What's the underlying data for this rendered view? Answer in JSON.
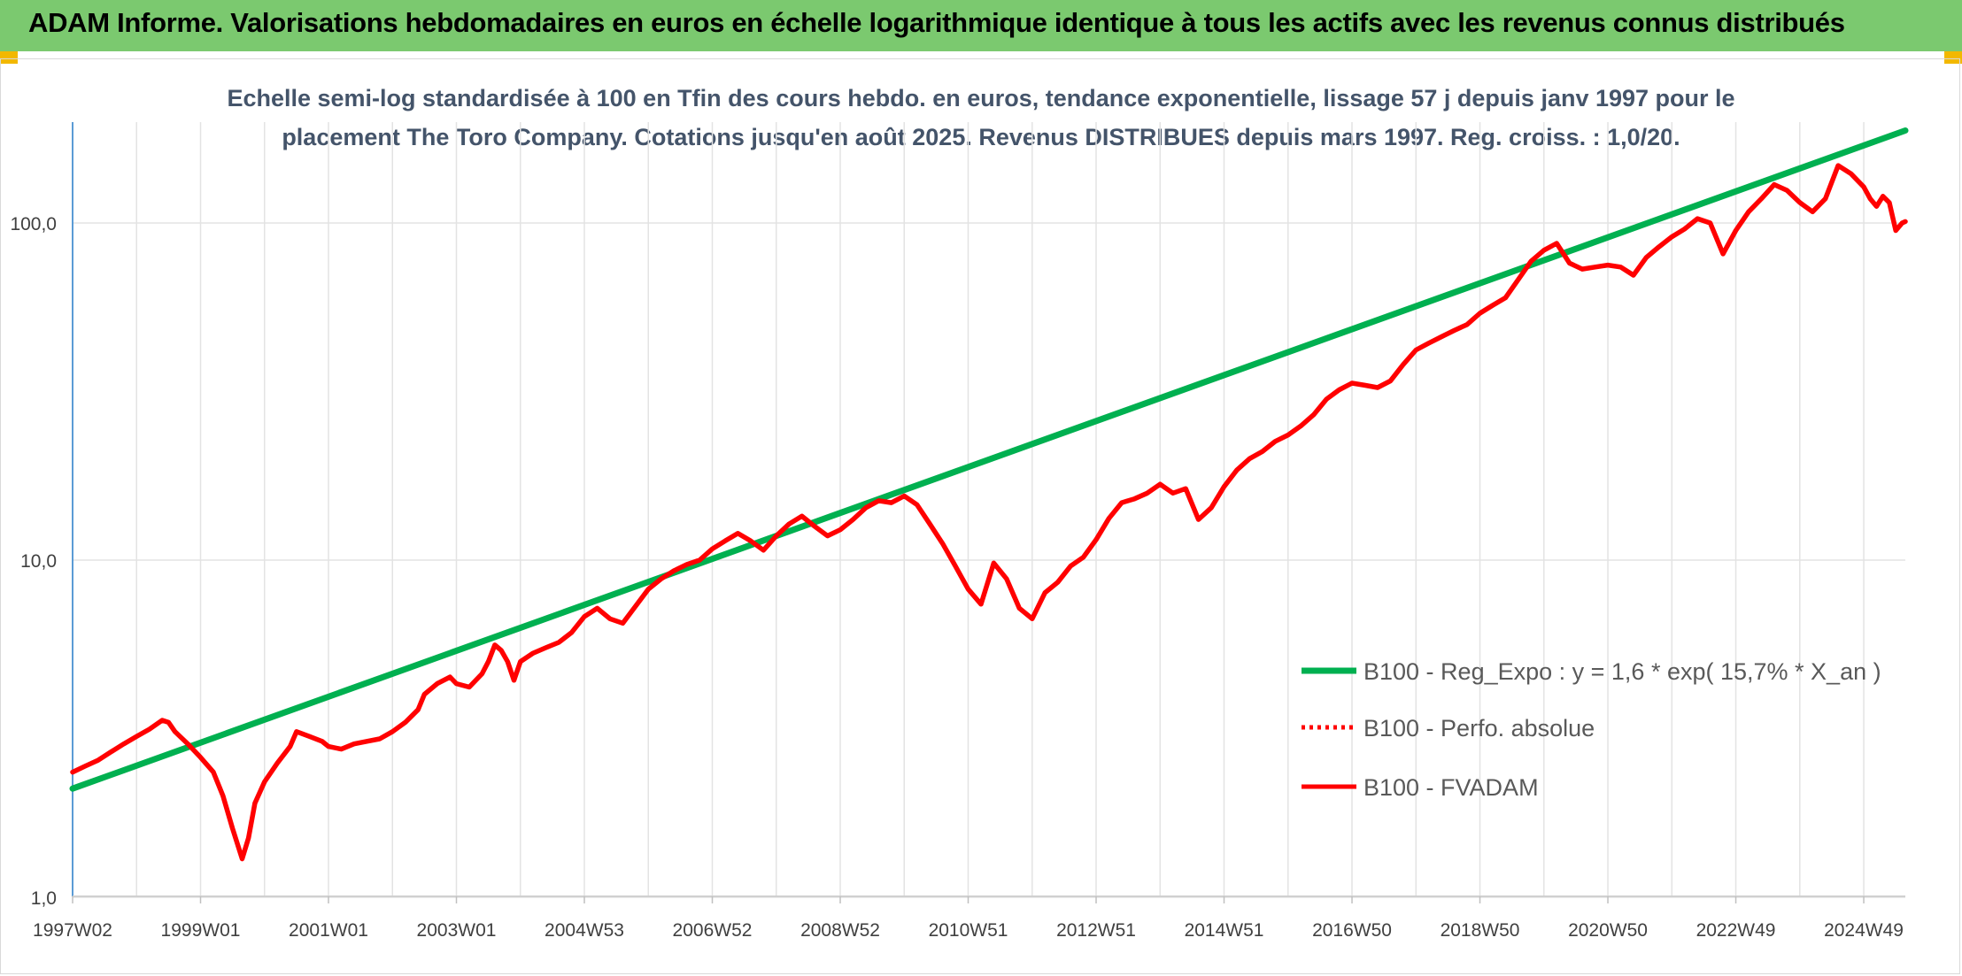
{
  "banner": {
    "title": "ADAM Informe. Valorisations hebdomadaires en euros en échelle logarithmique identique à tous les actifs avec les revenus connus distribués",
    "color": "#7bc96f"
  },
  "chart_data": {
    "type": "line",
    "subtitle_line1": "Echelle semi-log standardisée à 100 en Tfin des cours hebdo. en euros, tendance exponentielle, lissage 57 j depuis janv 1997 pour le",
    "subtitle_line2": "placement The Toro Company. Cotations jusqu'en août 2025. Revenus DISTRIBUES depuis mars 1997. Reg. croiss. : 1,0/20.",
    "y_scale": "log",
    "ylim": [
      1,
      190
    ],
    "y_ticks": [
      {
        "value": 1,
        "label": "1,0"
      },
      {
        "value": 10,
        "label": "10,0"
      },
      {
        "value": 100,
        "label": "100,0"
      }
    ],
    "xlim": [
      1997.0,
      2025.65
    ],
    "x_ticks": [
      {
        "value": 1997.0,
        "label": "1997W02"
      },
      {
        "value": 1999.0,
        "label": "1999W01"
      },
      {
        "value": 2001.0,
        "label": "2001W01"
      },
      {
        "value": 2003.0,
        "label": "2003W01"
      },
      {
        "value": 2005.0,
        "label": "2004W53"
      },
      {
        "value": 2007.0,
        "label": "2006W52"
      },
      {
        "value": 2009.0,
        "label": "2008W52"
      },
      {
        "value": 2011.0,
        "label": "2010W51"
      },
      {
        "value": 2013.0,
        "label": "2012W51"
      },
      {
        "value": 2015.0,
        "label": "2014W51"
      },
      {
        "value": 2017.0,
        "label": "2016W50"
      },
      {
        "value": 2019.0,
        "label": "2018W50"
      },
      {
        "value": 2021.0,
        "label": "2020W50"
      },
      {
        "value": 2023.0,
        "label": "2022W49"
      },
      {
        "value": 2025.0,
        "label": "2024W49"
      }
    ],
    "grid": "vertical and horizontal",
    "legend_position": "bottom-right",
    "series": [
      {
        "name": "B100 - Reg_Expo : y = 1,6 * exp( 15,7% *  X_an )",
        "color": "#00b050",
        "style": "solid",
        "points": [
          [
            1997.0,
            2.1
          ],
          [
            2025.65,
            188
          ]
        ]
      },
      {
        "name": "B100 - Perfo. absolue",
        "color": "#ff0000",
        "style": "dotted",
        "points": []
      },
      {
        "name": "B100 - FVADAM",
        "color": "#ff0000",
        "style": "solid",
        "points": [
          [
            1997.0,
            2.35
          ],
          [
            1997.2,
            2.45
          ],
          [
            1997.4,
            2.55
          ],
          [
            1997.6,
            2.7
          ],
          [
            1997.8,
            2.85
          ],
          [
            1998.0,
            3.0
          ],
          [
            1998.2,
            3.15
          ],
          [
            1998.4,
            3.35
          ],
          [
            1998.5,
            3.3
          ],
          [
            1998.6,
            3.1
          ],
          [
            1998.8,
            2.85
          ],
          [
            1999.0,
            2.6
          ],
          [
            1999.2,
            2.35
          ],
          [
            1999.35,
            2.0
          ],
          [
            1999.5,
            1.6
          ],
          [
            1999.65,
            1.3
          ],
          [
            1999.75,
            1.5
          ],
          [
            1999.85,
            1.9
          ],
          [
            2000.0,
            2.2
          ],
          [
            2000.2,
            2.5
          ],
          [
            2000.4,
            2.8
          ],
          [
            2000.5,
            3.1
          ],
          [
            2000.7,
            3.0
          ],
          [
            2000.9,
            2.9
          ],
          [
            2001.0,
            2.8
          ],
          [
            2001.2,
            2.75
          ],
          [
            2001.4,
            2.85
          ],
          [
            2001.6,
            2.9
          ],
          [
            2001.8,
            2.95
          ],
          [
            2002.0,
            3.1
          ],
          [
            2002.2,
            3.3
          ],
          [
            2002.4,
            3.6
          ],
          [
            2002.5,
            4.0
          ],
          [
            2002.7,
            4.3
          ],
          [
            2002.9,
            4.5
          ],
          [
            2003.0,
            4.3
          ],
          [
            2003.2,
            4.2
          ],
          [
            2003.4,
            4.6
          ],
          [
            2003.5,
            5.0
          ],
          [
            2003.6,
            5.6
          ],
          [
            2003.7,
            5.4
          ],
          [
            2003.8,
            5.0
          ],
          [
            2003.9,
            4.4
          ],
          [
            2004.0,
            5.0
          ],
          [
            2004.2,
            5.3
          ],
          [
            2004.4,
            5.5
          ],
          [
            2004.6,
            5.7
          ],
          [
            2004.8,
            6.1
          ],
          [
            2005.0,
            6.8
          ],
          [
            2005.2,
            7.2
          ],
          [
            2005.4,
            6.7
          ],
          [
            2005.6,
            6.5
          ],
          [
            2005.8,
            7.3
          ],
          [
            2006.0,
            8.2
          ],
          [
            2006.2,
            8.8
          ],
          [
            2006.4,
            9.3
          ],
          [
            2006.6,
            9.7
          ],
          [
            2006.8,
            10.0
          ],
          [
            2007.0,
            10.8
          ],
          [
            2007.2,
            11.4
          ],
          [
            2007.4,
            12.0
          ],
          [
            2007.6,
            11.4
          ],
          [
            2007.8,
            10.7
          ],
          [
            2008.0,
            11.8
          ],
          [
            2008.2,
            12.8
          ],
          [
            2008.4,
            13.5
          ],
          [
            2008.6,
            12.6
          ],
          [
            2008.8,
            11.8
          ],
          [
            2009.0,
            12.3
          ],
          [
            2009.2,
            13.2
          ],
          [
            2009.4,
            14.3
          ],
          [
            2009.6,
            15.0
          ],
          [
            2009.8,
            14.8
          ],
          [
            2010.0,
            15.5
          ],
          [
            2010.2,
            14.6
          ],
          [
            2010.4,
            12.8
          ],
          [
            2010.6,
            11.2
          ],
          [
            2010.8,
            9.6
          ],
          [
            2011.0,
            8.2
          ],
          [
            2011.2,
            7.4
          ],
          [
            2011.4,
            9.8
          ],
          [
            2011.6,
            8.8
          ],
          [
            2011.8,
            7.2
          ],
          [
            2012.0,
            6.7
          ],
          [
            2012.2,
            8.0
          ],
          [
            2012.4,
            8.6
          ],
          [
            2012.6,
            9.6
          ],
          [
            2012.8,
            10.2
          ],
          [
            2013.0,
            11.5
          ],
          [
            2013.2,
            13.3
          ],
          [
            2013.4,
            14.8
          ],
          [
            2013.6,
            15.2
          ],
          [
            2013.8,
            15.8
          ],
          [
            2014.0,
            16.8
          ],
          [
            2014.2,
            15.8
          ],
          [
            2014.4,
            16.3
          ],
          [
            2014.6,
            13.2
          ],
          [
            2014.8,
            14.3
          ],
          [
            2015.0,
            16.5
          ],
          [
            2015.2,
            18.5
          ],
          [
            2015.4,
            20.0
          ],
          [
            2015.6,
            21.0
          ],
          [
            2015.8,
            22.5
          ],
          [
            2016.0,
            23.5
          ],
          [
            2016.2,
            25.0
          ],
          [
            2016.4,
            27.0
          ],
          [
            2016.6,
            30.0
          ],
          [
            2016.8,
            32.0
          ],
          [
            2017.0,
            33.5
          ],
          [
            2017.2,
            33.0
          ],
          [
            2017.4,
            32.5
          ],
          [
            2017.6,
            34.0
          ],
          [
            2017.8,
            38.0
          ],
          [
            2018.0,
            42.0
          ],
          [
            2018.2,
            44.0
          ],
          [
            2018.4,
            46.0
          ],
          [
            2018.6,
            48.0
          ],
          [
            2018.8,
            50.0
          ],
          [
            2019.0,
            54.0
          ],
          [
            2019.2,
            57.0
          ],
          [
            2019.4,
            60.0
          ],
          [
            2019.6,
            68.0
          ],
          [
            2019.8,
            77.0
          ],
          [
            2020.0,
            83.0
          ],
          [
            2020.2,
            87.0
          ],
          [
            2020.4,
            76.0
          ],
          [
            2020.6,
            73.0
          ],
          [
            2020.8,
            74.0
          ],
          [
            2021.0,
            75.0
          ],
          [
            2021.2,
            74.0
          ],
          [
            2021.4,
            70.0
          ],
          [
            2021.6,
            79.0
          ],
          [
            2021.8,
            85.0
          ],
          [
            2022.0,
            91.0
          ],
          [
            2022.2,
            96.0
          ],
          [
            2022.4,
            103.0
          ],
          [
            2022.6,
            100.0
          ],
          [
            2022.8,
            81.0
          ],
          [
            2023.0,
            95.0
          ],
          [
            2023.2,
            108.0
          ],
          [
            2023.4,
            118.0
          ],
          [
            2023.6,
            130.0
          ],
          [
            2023.8,
            125.0
          ],
          [
            2024.0,
            115.0
          ],
          [
            2024.2,
            108.0
          ],
          [
            2024.4,
            118.0
          ],
          [
            2024.6,
            148.0
          ],
          [
            2024.8,
            140.0
          ],
          [
            2025.0,
            128.0
          ],
          [
            2025.1,
            118.0
          ],
          [
            2025.2,
            112.0
          ],
          [
            2025.3,
            120.0
          ],
          [
            2025.4,
            115.0
          ],
          [
            2025.5,
            95.0
          ],
          [
            2025.6,
            100.0
          ],
          [
            2025.65,
            101.0
          ]
        ]
      }
    ]
  }
}
